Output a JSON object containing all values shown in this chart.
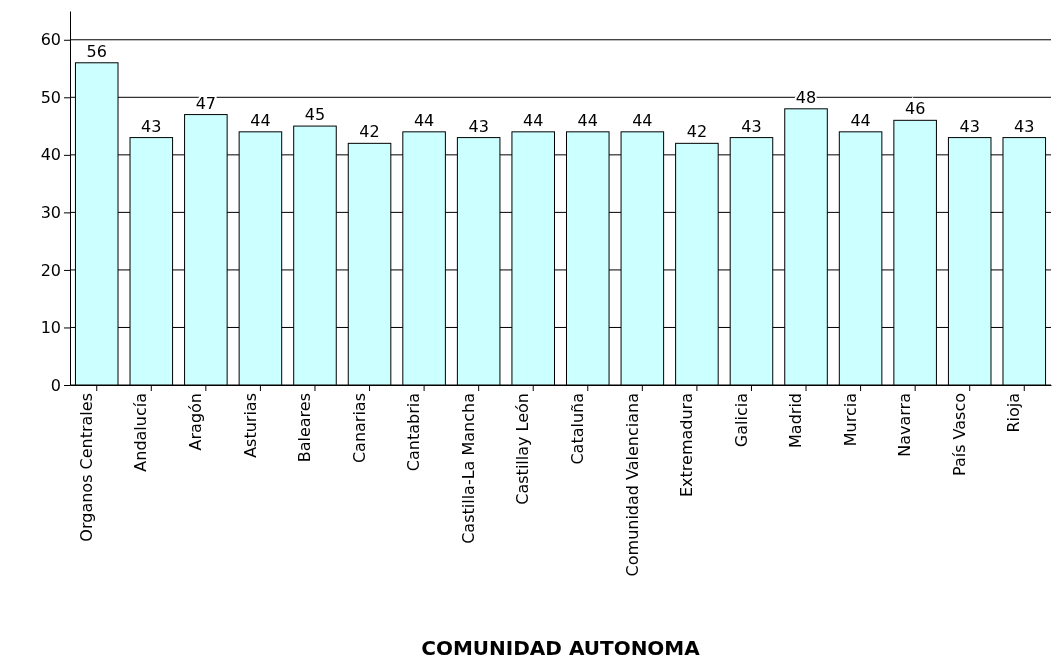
{
  "chart_data": {
    "type": "bar",
    "xlabel": "COMUNIDAD AUTONOMA",
    "categories": [
      "Organos Centrales",
      "Andalucía",
      "Aragón",
      "Asturias",
      "Baleares",
      "Canarias",
      "Cantabria",
      "Castilla-La Mancha",
      "Castillay León",
      "Cataluña",
      "Comunidad Valenciana",
      "Extremadura",
      "Galicia",
      "Madrid",
      "Murcia",
      "Navarra",
      "País Vasco",
      "Rioja"
    ],
    "values": [
      56,
      43,
      47,
      44,
      45,
      42,
      44,
      43,
      44,
      44,
      44,
      42,
      43,
      48,
      44,
      46,
      43,
      43
    ],
    "color": "#ccffff",
    "ylim": [
      0,
      65
    ],
    "yticks": [
      0,
      10,
      20,
      30,
      40,
      50,
      60
    ],
    "grid": "y",
    "data_labels": true
  }
}
